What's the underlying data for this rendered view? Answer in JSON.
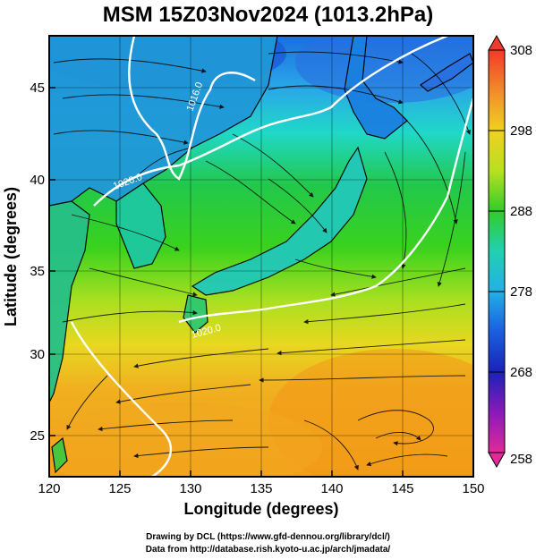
{
  "title": "MSM 15Z03Nov2024 (1013.2hPa)",
  "xaxis": {
    "label": "Longitude (degrees)",
    "ticks": [
      120,
      125,
      130,
      135,
      140,
      145,
      150
    ],
    "range": [
      120,
      150
    ]
  },
  "yaxis": {
    "label": "Latitude  (degrees)",
    "ticks": [
      25,
      30,
      35,
      40,
      45
    ],
    "range": [
      22.4,
      47.6
    ]
  },
  "colorbar": {
    "ticks": [
      308,
      298,
      288,
      278,
      268,
      258
    ],
    "range": [
      258,
      308
    ]
  },
  "isobar_labels": [
    "1016.0",
    "1020.0",
    "1020.0"
  ],
  "credits": {
    "line1": "Drawing by DCL (https://www.gfd-dennou.org/library/dcl/)",
    "line2": "Data from http://database.rish.kyoto-u.ac.jp/arch/jmadata/"
  },
  "colors": {
    "land_outline": "#000000",
    "isobar": "#ffffff",
    "grid": "#000000",
    "stream": "#000000"
  }
}
